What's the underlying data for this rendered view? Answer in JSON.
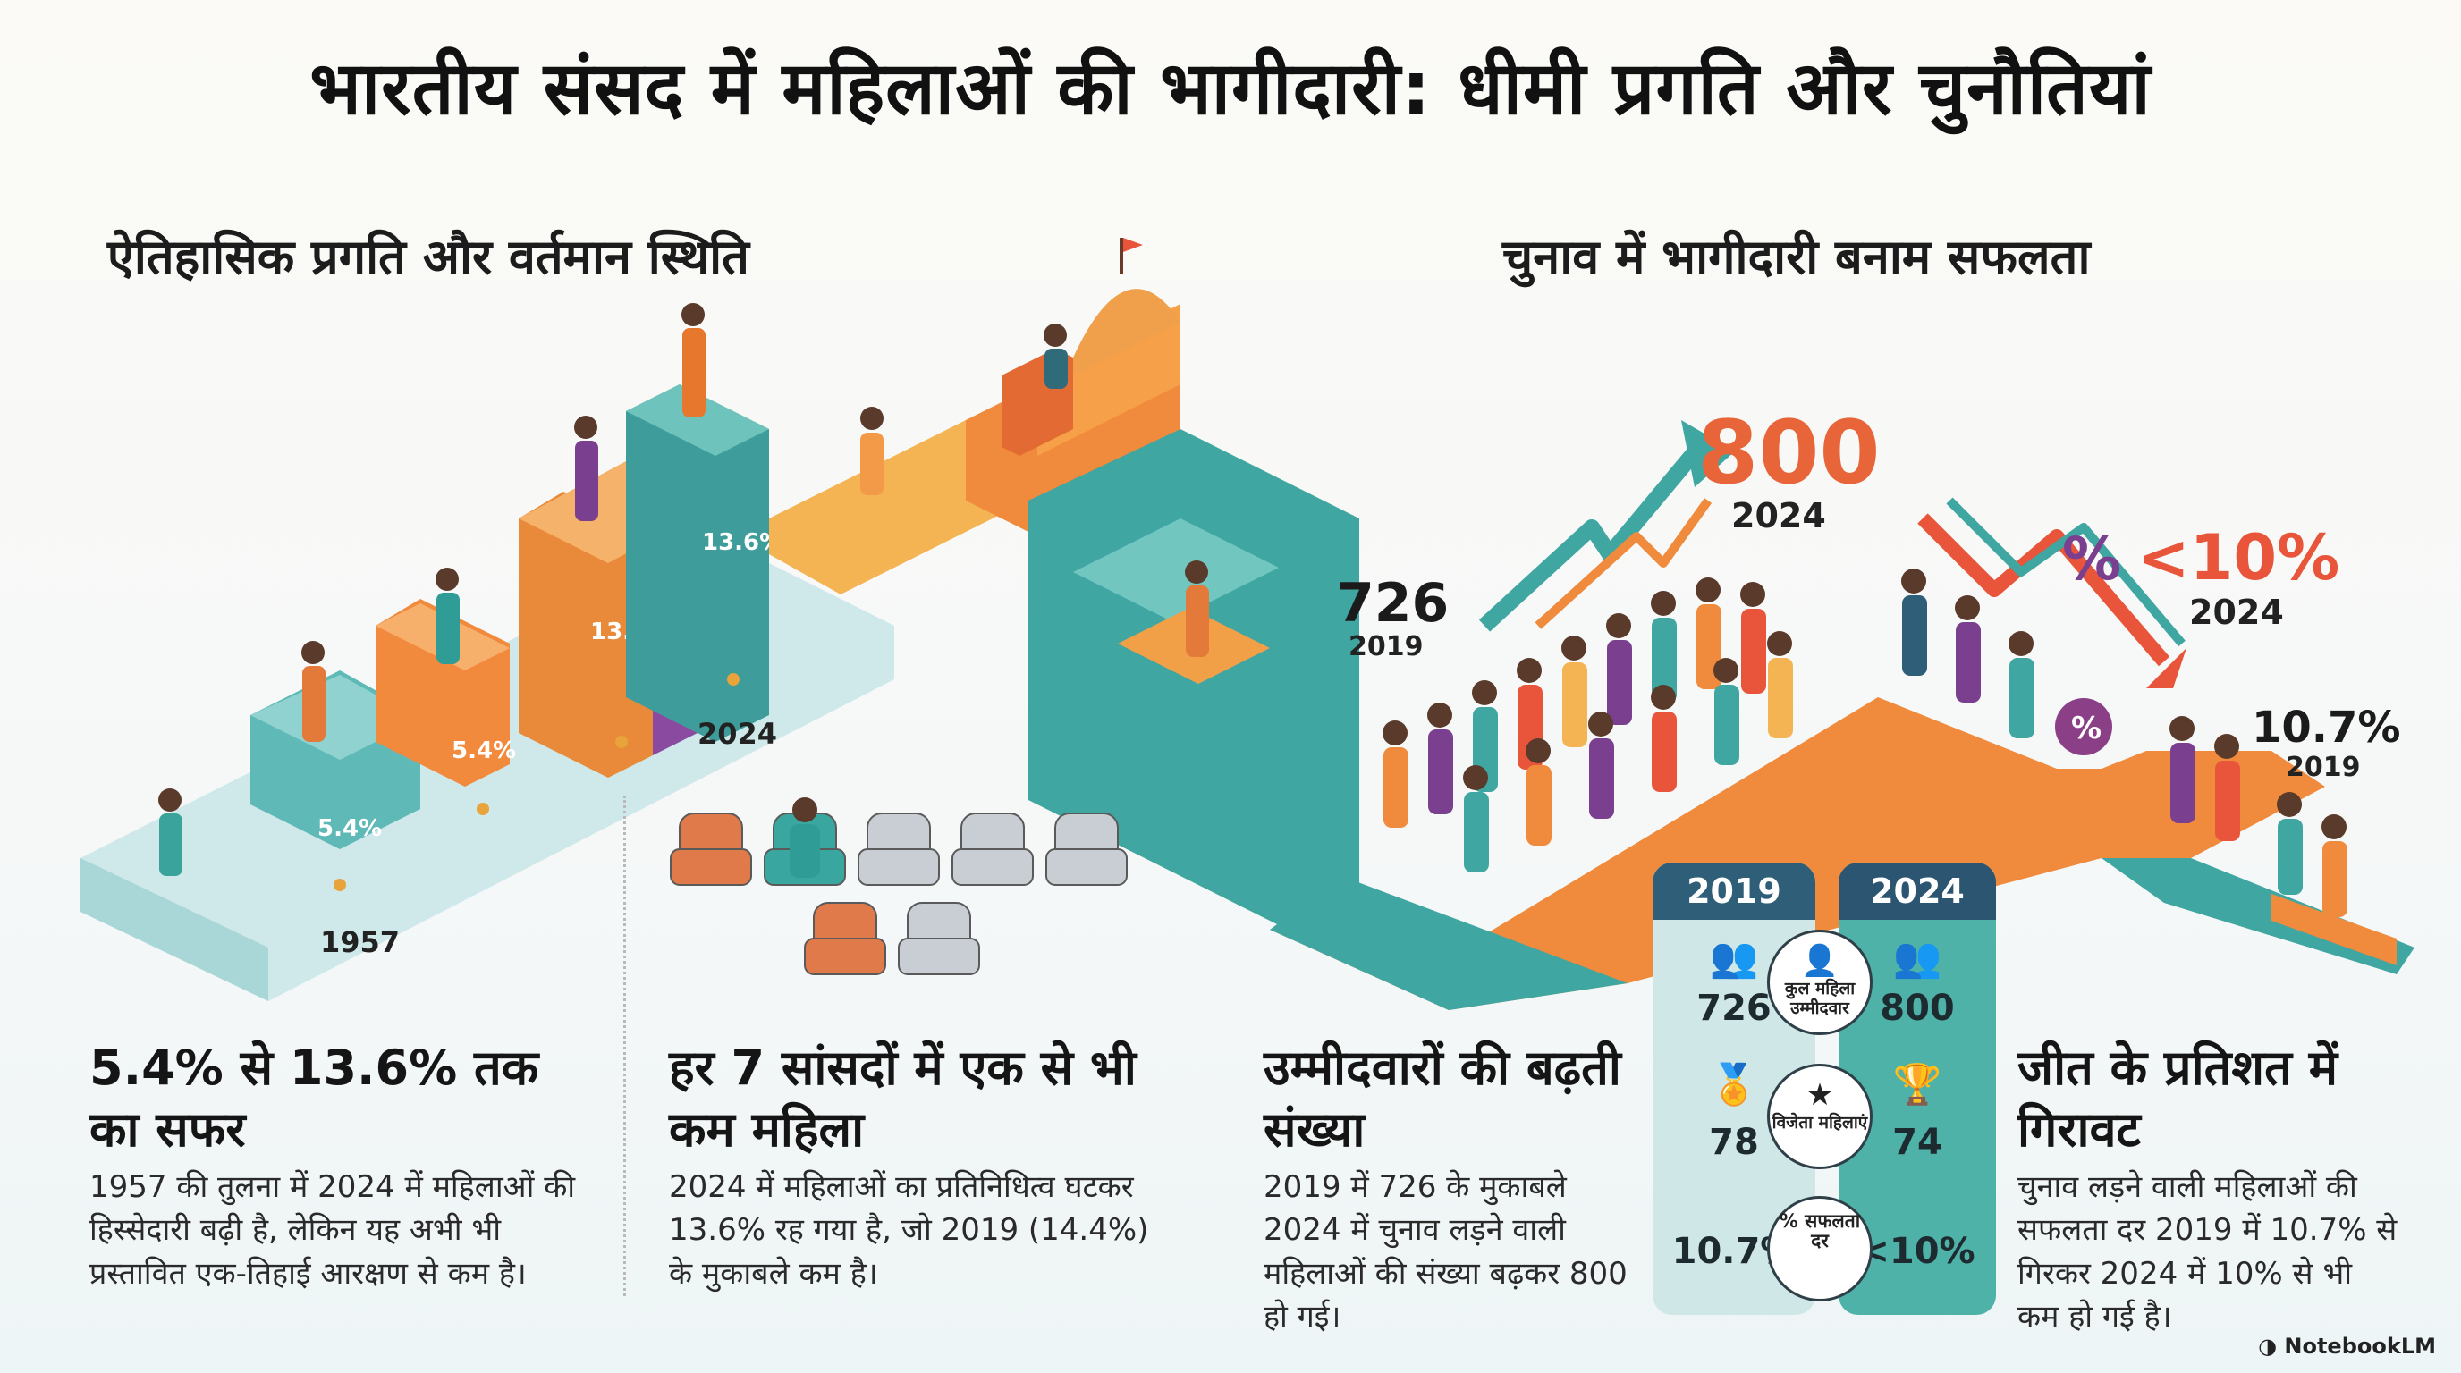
{
  "title": "भारतीय संसद में महिलाओं की भागीदारी: धीमी प्रगति और चुनौतियां",
  "left_section_title": "ऐतिहासिक प्रगति और वर्तमान स्थिति",
  "right_section_title": "चुनाव में भागीदारी बनाम सफलता",
  "steps": {
    "labels": [
      "5.4%",
      "5.4%",
      "13.6%",
      "13.6%"
    ],
    "year_start": "1957",
    "year_end": "2024"
  },
  "candidates_graphic": {
    "value_2019": "726",
    "year_2019": "2019",
    "value_2024": "800",
    "year_2024": "2024"
  },
  "success_graphic": {
    "symbol": "%",
    "value_2024": "<10%",
    "year_2024": "2024",
    "value_2019": "10.7%",
    "year_2019": "2019"
  },
  "panels": [
    {
      "heading": "5.4% से 13.6% तक का सफर",
      "body": "1957 की तुलना में 2024 में महिलाओं की हिस्सेदारी बढ़ी है, लेकिन यह अभी भी प्रस्तावित एक-तिहाई आरक्षण से कम है।"
    },
    {
      "heading": "हर 7 सांसदों में एक से भी कम महिला",
      "body": "2024 में महिलाओं का प्रतिनिधित्व घटकर 13.6% रह गया है, जो 2019 (14.4%) के मुकाबले कम है।"
    },
    {
      "heading": "उम्मीदवारों की बढ़ती संख्या",
      "body": "2019 में 726 के मुकाबले 2024 में चुनाव लड़ने वाली महिलाओं की संख्या बढ़कर 800 हो गई।"
    },
    {
      "heading": "जीत के प्रतिशत में गिरावट",
      "body": "चुनाव लड़ने वाली महिलाओं की सफलता दर 2019 में 10.7% से गिरकर 2024 में 10% से भी कम हो गई है।"
    }
  ],
  "comparison": {
    "year_2019": "2019",
    "year_2024": "2024",
    "rows": [
      {
        "label": "कुल महिला उम्मीदवार",
        "icon": "people-icon",
        "v2019": "726",
        "v2024": "800"
      },
      {
        "label": "विजेता महिलाएं",
        "icon": "medal-icon",
        "v2019": "78",
        "v2024": "74"
      },
      {
        "label": "% सफलता दर",
        "icon": "percent-icon",
        "v2019": "10.7%",
        "v2024": "<10%"
      }
    ]
  },
  "seats": {
    "total": 7,
    "occupied_index": 1,
    "colors": {
      "orange": "#e07a4a",
      "teal": "#3aa6a0",
      "gray": "#c9ced4"
    }
  },
  "brand": "NotebookLM",
  "colors": {
    "teal": "#3fa9a2",
    "orange": "#f08a3c",
    "purple": "#7b3f8f",
    "accent_red": "#e8553a"
  }
}
